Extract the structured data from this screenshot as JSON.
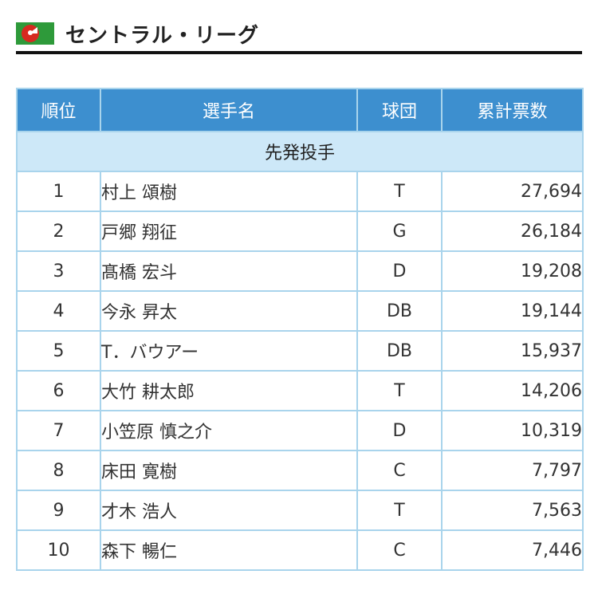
{
  "header": {
    "title": "セントラル・リーグ",
    "logo_icon": "central-league-logo-icon",
    "colors": {
      "logo_green": "#2e9a3a",
      "logo_red": "#d62a20",
      "table_header_blue": "#3d8fcf",
      "section_light_blue": "#cde8f8"
    }
  },
  "table": {
    "columns": [
      "順位",
      "選手名",
      "球団",
      "累計票数"
    ],
    "section": "先発投手",
    "rows": [
      {
        "rank": "1",
        "name": "村上 頌樹",
        "team": "T",
        "votes": "27,694"
      },
      {
        "rank": "2",
        "name": "戸郷 翔征",
        "team": "G",
        "votes": "26,184"
      },
      {
        "rank": "3",
        "name": "髙橋 宏斗",
        "team": "D",
        "votes": "19,208"
      },
      {
        "rank": "4",
        "name": "今永 昇太",
        "team": "DB",
        "votes": "19,144"
      },
      {
        "rank": "5",
        "name": "T．バウアー",
        "team": "DB",
        "votes": "15,937"
      },
      {
        "rank": "6",
        "name": "大竹 耕太郎",
        "team": "T",
        "votes": "14,206"
      },
      {
        "rank": "7",
        "name": "小笠原 慎之介",
        "team": "D",
        "votes": "10,319"
      },
      {
        "rank": "8",
        "name": "床田 寛樹",
        "team": "C",
        "votes": "7,797"
      },
      {
        "rank": "9",
        "name": "才木 浩人",
        "team": "T",
        "votes": "7,563"
      },
      {
        "rank": "10",
        "name": "森下 暢仁",
        "team": "C",
        "votes": "7,446"
      }
    ]
  }
}
